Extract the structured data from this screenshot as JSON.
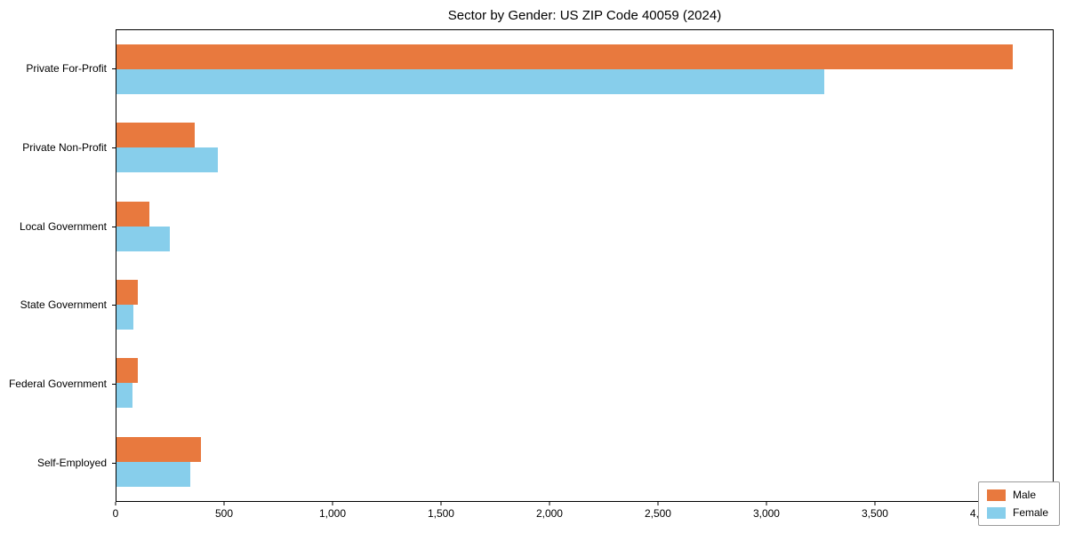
{
  "chart_data": {
    "type": "bar",
    "orientation": "horizontal",
    "title": "Sector by Gender: US ZIP Code 40059 (2024)",
    "categories": [
      "Private For-Profit",
      "Private Non-Profit",
      "Local Government",
      "State Government",
      "Federal Government",
      "Self-Employed"
    ],
    "series": [
      {
        "name": "Male",
        "color": "#e8793e",
        "values": [
          4140,
          360,
          150,
          100,
          100,
          390
        ]
      },
      {
        "name": "Female",
        "color": "#87ceeb",
        "values": [
          3270,
          470,
          245,
          80,
          75,
          340
        ]
      }
    ],
    "xlim": [
      0,
      4324
    ],
    "xticks": [
      0,
      500,
      1000,
      1500,
      2000,
      2500,
      3000,
      3500,
      4000
    ],
    "xtick_labels": [
      "0",
      "500",
      "1,000",
      "1,500",
      "2,000",
      "2,500",
      "3,000",
      "3,500",
      "4,000"
    ],
    "ylabel": "",
    "xlabel": "",
    "grid": false,
    "legend_position": "lower right"
  }
}
